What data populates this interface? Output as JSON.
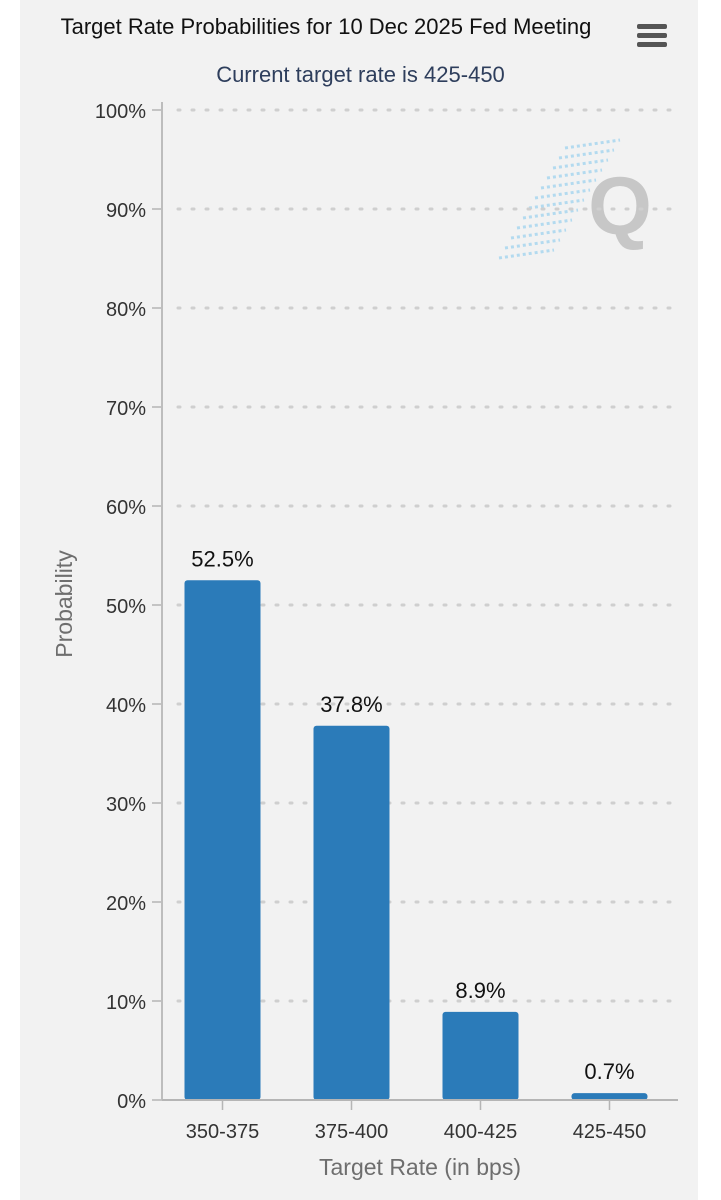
{
  "chart_data": {
    "type": "bar",
    "title": "Target Rate Probabilities for 10 Dec 2025 Fed Meeting",
    "subtitle": "Current target rate is 425-450",
    "xlabel": "Target Rate (in bps)",
    "ylabel": "Probability",
    "categories": [
      "350-375",
      "375-400",
      "400-425",
      "425-450"
    ],
    "values": [
      52.5,
      37.8,
      8.9,
      0.7
    ],
    "data_labels": [
      "52.5%",
      "37.8%",
      "8.9%",
      "0.7%"
    ],
    "ylim": [
      0,
      100
    ],
    "yticks": [
      "0%",
      "10%",
      "20%",
      "30%",
      "40%",
      "50%",
      "60%",
      "70%",
      "80%",
      "90%",
      "100%"
    ],
    "grid": "dotted horizontal",
    "legend": "none",
    "bar_color": "#2b7bb9"
  },
  "menu": {
    "icon": "hamburger-menu-icon"
  },
  "watermark": {
    "icon": "quikstrike-q-logo",
    "text": "Q"
  }
}
